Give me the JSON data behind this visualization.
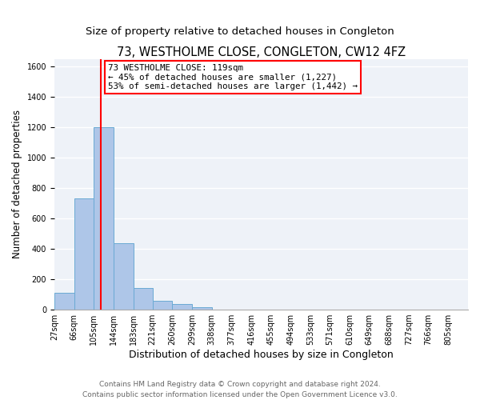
{
  "title": "73, WESTHOLME CLOSE, CONGLETON, CW12 4FZ",
  "subtitle": "Size of property relative to detached houses in Congleton",
  "xlabel": "Distribution of detached houses by size in Congleton",
  "ylabel": "Number of detached properties",
  "bin_labels": [
    "27sqm",
    "66sqm",
    "105sqm",
    "144sqm",
    "183sqm",
    "221sqm",
    "260sqm",
    "299sqm",
    "338sqm",
    "377sqm",
    "416sqm",
    "455sqm",
    "494sqm",
    "533sqm",
    "571sqm",
    "610sqm",
    "649sqm",
    "688sqm",
    "727sqm",
    "766sqm",
    "805sqm"
  ],
  "bin_left_edges": [
    27,
    66,
    105,
    144,
    183,
    221,
    260,
    299,
    338,
    377,
    416,
    455,
    494,
    533,
    571,
    610,
    649,
    688,
    727,
    766,
    805
  ],
  "bin_width": 39,
  "bar_heights": [
    110,
    730,
    1200,
    440,
    145,
    60,
    35,
    15,
    0,
    0,
    0,
    0,
    0,
    0,
    0,
    0,
    0,
    0,
    0,
    0,
    0
  ],
  "bar_color": "#aec6e8",
  "bar_edge_color": "#6aaad4",
  "vline_x": 119,
  "vline_color": "red",
  "ylim": [
    0,
    1650
  ],
  "yticks": [
    0,
    200,
    400,
    600,
    800,
    1000,
    1200,
    1400,
    1600
  ],
  "annotation_line1": "73 WESTHOLME CLOSE: 119sqm",
  "annotation_line2": "← 45% of detached houses are smaller (1,227)",
  "annotation_line3": "53% of semi-detached houses are larger (1,442) →",
  "footer_line1": "Contains HM Land Registry data © Crown copyright and database right 2024.",
  "footer_line2": "Contains public sector information licensed under the Open Government Licence v3.0.",
  "bg_color": "#eef2f8",
  "grid_color": "white",
  "title_fontsize": 10.5,
  "subtitle_fontsize": 9.5,
  "xlabel_fontsize": 9,
  "ylabel_fontsize": 8.5,
  "tick_fontsize": 7,
  "annotation_fontsize": 7.8,
  "footer_fontsize": 6.5
}
